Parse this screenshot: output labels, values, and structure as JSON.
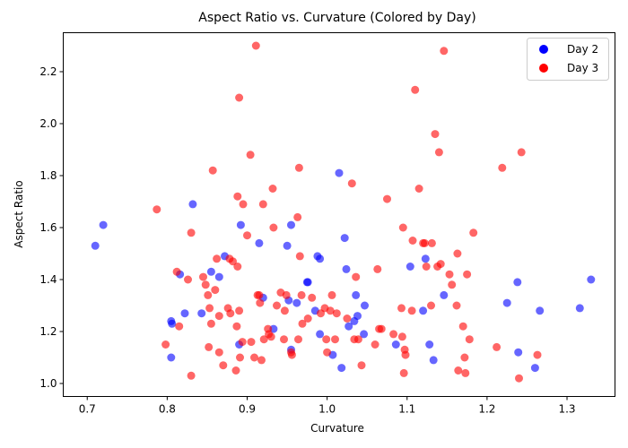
{
  "chart_data": {
    "type": "scatter",
    "title": "Aspect Ratio vs. Curvature (Colored by Day)",
    "xlabel": "Curvature",
    "ylabel": "Aspect Ratio",
    "xlim": [
      0.67,
      1.36
    ],
    "ylim": [
      0.95,
      2.35
    ],
    "xticks": [
      0.7,
      0.8,
      0.9,
      1.0,
      1.1,
      1.2,
      1.3
    ],
    "xtick_labels": [
      "0.7",
      "0.8",
      "0.9",
      "1.0",
      "1.1",
      "1.2",
      "1.3"
    ],
    "yticks": [
      1.0,
      1.2,
      1.4,
      1.6,
      1.8,
      2.0,
      2.2
    ],
    "ytick_labels": [
      "1.0",
      "1.2",
      "1.4",
      "1.6",
      "1.8",
      "2.0",
      "2.2"
    ],
    "grid": false,
    "legend_position": "top-right",
    "series": [
      {
        "name": "Day 2",
        "color": "#0000ff",
        "points": [
          [
            0.71,
            1.53
          ],
          [
            0.72,
            1.61
          ],
          [
            0.805,
            1.24
          ],
          [
            0.806,
            1.23
          ],
          [
            0.805,
            1.1
          ],
          [
            0.816,
            1.42
          ],
          [
            0.822,
            1.27
          ],
          [
            0.832,
            1.69
          ],
          [
            0.843,
            1.27
          ],
          [
            0.855,
            1.43
          ],
          [
            0.865,
            1.41
          ],
          [
            0.872,
            1.49
          ],
          [
            0.89,
            1.15
          ],
          [
            0.892,
            1.61
          ],
          [
            0.915,
            1.54
          ],
          [
            0.92,
            1.33
          ],
          [
            0.933,
            1.21
          ],
          [
            0.95,
            1.53
          ],
          [
            0.952,
            1.32
          ],
          [
            0.955,
            1.13
          ],
          [
            0.955,
            1.61
          ],
          [
            0.962,
            1.31
          ],
          [
            0.975,
            1.39
          ],
          [
            0.976,
            1.39
          ],
          [
            0.985,
            1.28
          ],
          [
            0.988,
            1.49
          ],
          [
            0.991,
            1.48
          ],
          [
            0.991,
            1.19
          ],
          [
            1.007,
            1.11
          ],
          [
            1.015,
            1.81
          ],
          [
            1.018,
            1.06
          ],
          [
            1.022,
            1.56
          ],
          [
            1.024,
            1.44
          ],
          [
            1.027,
            1.22
          ],
          [
            1.034,
            1.24
          ],
          [
            1.036,
            1.34
          ],
          [
            1.038,
            1.26
          ],
          [
            1.046,
            1.19
          ],
          [
            1.047,
            1.3
          ],
          [
            1.086,
            1.15
          ],
          [
            1.104,
            1.45
          ],
          [
            1.12,
            1.28
          ],
          [
            1.123,
            1.48
          ],
          [
            1.128,
            1.15
          ],
          [
            1.133,
            1.09
          ],
          [
            1.146,
            1.34
          ],
          [
            1.225,
            1.31
          ],
          [
            1.238,
            1.39
          ],
          [
            1.239,
            1.12
          ],
          [
            1.26,
            1.06
          ],
          [
            1.266,
            1.28
          ],
          [
            1.316,
            1.29
          ],
          [
            1.33,
            1.4
          ]
        ]
      },
      {
        "name": "Day 3",
        "color": "#ff0000",
        "points": [
          [
            0.787,
            1.67
          ],
          [
            0.798,
            1.15
          ],
          [
            0.812,
            1.43
          ],
          [
            0.815,
            1.22
          ],
          [
            0.826,
            1.4
          ],
          [
            0.83,
            1.03
          ],
          [
            0.83,
            1.58
          ],
          [
            0.845,
            1.41
          ],
          [
            0.848,
            1.38
          ],
          [
            0.851,
            1.34
          ],
          [
            0.852,
            1.14
          ],
          [
            0.853,
            1.29
          ],
          [
            0.855,
            1.23
          ],
          [
            0.857,
            1.82
          ],
          [
            0.86,
            1.36
          ],
          [
            0.862,
            1.48
          ],
          [
            0.865,
            1.26
          ],
          [
            0.865,
            1.12
          ],
          [
            0.87,
            1.07
          ],
          [
            0.876,
            1.29
          ],
          [
            0.878,
            1.48
          ],
          [
            0.879,
            1.27
          ],
          [
            0.882,
            1.47
          ],
          [
            0.886,
            1.05
          ],
          [
            0.887,
            1.22
          ],
          [
            0.888,
            1.45
          ],
          [
            0.888,
            1.72
          ],
          [
            0.89,
            1.28
          ],
          [
            0.89,
            2.1
          ],
          [
            0.891,
            1.1
          ],
          [
            0.894,
            1.16
          ],
          [
            0.895,
            1.69
          ],
          [
            0.9,
            1.57
          ],
          [
            0.904,
            1.88
          ],
          [
            0.905,
            1.16
          ],
          [
            0.909,
            1.1
          ],
          [
            0.911,
            2.3
          ],
          [
            0.913,
            1.34
          ],
          [
            0.915,
            1.34
          ],
          [
            0.916,
            1.31
          ],
          [
            0.918,
            1.09
          ],
          [
            0.92,
            1.69
          ],
          [
            0.921,
            1.17
          ],
          [
            0.926,
            1.21
          ],
          [
            0.927,
            1.19
          ],
          [
            0.93,
            1.18
          ],
          [
            0.932,
            1.75
          ],
          [
            0.933,
            1.6
          ],
          [
            0.937,
            1.3
          ],
          [
            0.942,
            1.35
          ],
          [
            0.946,
            1.17
          ],
          [
            0.947,
            1.28
          ],
          [
            0.949,
            1.34
          ],
          [
            0.955,
            1.12
          ],
          [
            0.956,
            1.11
          ],
          [
            0.963,
            1.64
          ],
          [
            0.964,
            1.17
          ],
          [
            0.965,
            1.83
          ],
          [
            0.966,
            1.49
          ],
          [
            0.968,
            1.34
          ],
          [
            0.969,
            1.23
          ],
          [
            0.976,
            1.25
          ],
          [
            0.981,
            1.33
          ],
          [
            0.992,
            1.27
          ],
          [
            0.997,
            1.29
          ],
          [
            0.999,
            1.17
          ],
          [
            1.0,
            1.12
          ],
          [
            1.004,
            1.28
          ],
          [
            1.006,
            1.34
          ],
          [
            1.01,
            1.17
          ],
          [
            1.012,
            1.27
          ],
          [
            1.025,
            1.25
          ],
          [
            1.031,
            1.77
          ],
          [
            1.034,
            1.17
          ],
          [
            1.036,
            1.41
          ],
          [
            1.039,
            1.17
          ],
          [
            1.043,
            1.07
          ],
          [
            1.06,
            1.15
          ],
          [
            1.063,
            1.44
          ],
          [
            1.065,
            1.21
          ],
          [
            1.068,
            1.21
          ],
          [
            1.075,
            1.71
          ],
          [
            1.083,
            1.19
          ],
          [
            1.093,
            1.29
          ],
          [
            1.094,
            1.18
          ],
          [
            1.095,
            1.6
          ],
          [
            1.096,
            1.04
          ],
          [
            1.097,
            1.13
          ],
          [
            1.098,
            1.11
          ],
          [
            1.106,
            1.28
          ],
          [
            1.107,
            1.55
          ],
          [
            1.11,
            2.13
          ],
          [
            1.115,
            1.75
          ],
          [
            1.12,
            1.54
          ],
          [
            1.122,
            1.54
          ],
          [
            1.124,
            1.45
          ],
          [
            1.13,
            1.3
          ],
          [
            1.131,
            1.54
          ],
          [
            1.135,
            1.96
          ],
          [
            1.138,
            1.45
          ],
          [
            1.14,
            1.89
          ],
          [
            1.142,
            1.46
          ],
          [
            1.146,
            2.28
          ],
          [
            1.153,
            1.42
          ],
          [
            1.156,
            1.38
          ],
          [
            1.162,
            1.3
          ],
          [
            1.163,
            1.5
          ],
          [
            1.164,
            1.05
          ],
          [
            1.17,
            1.22
          ],
          [
            1.172,
            1.1
          ],
          [
            1.173,
            1.04
          ],
          [
            1.175,
            1.42
          ],
          [
            1.178,
            1.17
          ],
          [
            1.183,
            1.58
          ],
          [
            1.212,
            1.14
          ],
          [
            1.219,
            1.83
          ],
          [
            1.24,
            1.02
          ],
          [
            1.243,
            1.89
          ],
          [
            1.263,
            1.11
          ]
        ]
      }
    ]
  }
}
